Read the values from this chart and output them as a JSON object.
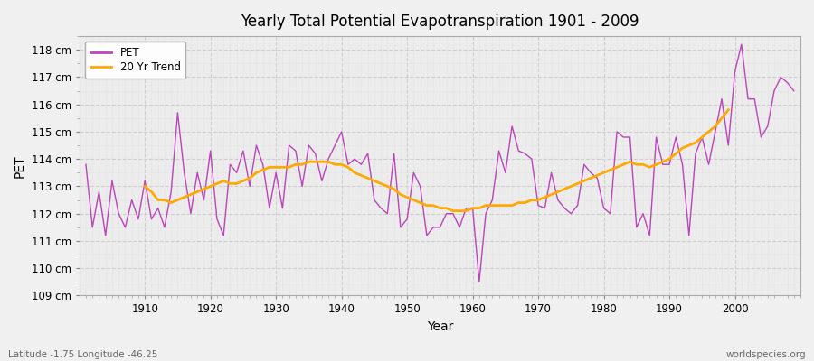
{
  "title": "Yearly Total Potential Evapotranspiration 1901 - 2009",
  "xlabel": "Year",
  "ylabel": "PET",
  "bottom_left_label": "Latitude -1.75 Longitude -46.25",
  "bottom_right_label": "worldspecies.org",
  "pet_color": "#bb44bb",
  "trend_color": "#ffaa00",
  "bg_color": "#f0f0f0",
  "plot_bg_color": "#ececec",
  "ylim": [
    109,
    118.5
  ],
  "yticks": [
    109,
    110,
    111,
    112,
    113,
    114,
    115,
    116,
    117,
    118
  ],
  "years": [
    1901,
    1902,
    1903,
    1904,
    1905,
    1906,
    1907,
    1908,
    1909,
    1910,
    1911,
    1912,
    1913,
    1914,
    1915,
    1916,
    1917,
    1918,
    1919,
    1920,
    1921,
    1922,
    1923,
    1924,
    1925,
    1926,
    1927,
    1928,
    1929,
    1930,
    1931,
    1932,
    1933,
    1934,
    1935,
    1936,
    1937,
    1938,
    1939,
    1940,
    1941,
    1942,
    1943,
    1944,
    1945,
    1946,
    1947,
    1948,
    1949,
    1950,
    1951,
    1952,
    1953,
    1954,
    1955,
    1956,
    1957,
    1958,
    1959,
    1960,
    1961,
    1962,
    1963,
    1964,
    1965,
    1966,
    1967,
    1968,
    1969,
    1970,
    1971,
    1972,
    1973,
    1974,
    1975,
    1976,
    1977,
    1978,
    1979,
    1980,
    1981,
    1982,
    1983,
    1984,
    1985,
    1986,
    1987,
    1988,
    1989,
    1990,
    1991,
    1992,
    1993,
    1994,
    1995,
    1996,
    1997,
    1998,
    1999,
    2000,
    2001,
    2002,
    2003,
    2004,
    2005,
    2006,
    2007,
    2008,
    2009
  ],
  "pet_values": [
    113.8,
    111.5,
    112.8,
    111.2,
    113.2,
    112.0,
    111.5,
    112.5,
    111.8,
    113.2,
    111.8,
    112.2,
    111.5,
    112.8,
    115.7,
    113.5,
    112.0,
    113.5,
    112.5,
    114.3,
    111.8,
    111.2,
    113.8,
    113.5,
    114.3,
    113.0,
    114.5,
    113.8,
    112.2,
    113.5,
    112.2,
    114.5,
    114.3,
    113.0,
    114.5,
    114.2,
    113.2,
    114.0,
    114.5,
    115.0,
    113.8,
    114.0,
    113.8,
    114.2,
    112.5,
    112.2,
    112.0,
    114.2,
    111.5,
    111.8,
    113.5,
    113.0,
    111.2,
    111.5,
    111.5,
    112.0,
    112.0,
    111.5,
    112.2,
    112.2,
    109.5,
    112.0,
    112.5,
    114.3,
    113.5,
    115.2,
    114.3,
    114.2,
    114.0,
    112.3,
    112.2,
    113.5,
    112.5,
    112.2,
    112.0,
    112.3,
    113.8,
    113.5,
    113.3,
    112.2,
    112.0,
    115.0,
    114.8,
    114.8,
    111.5,
    112.0,
    111.2,
    114.8,
    113.8,
    113.8,
    114.8,
    113.8,
    111.2,
    114.2,
    114.8,
    113.8,
    115.0,
    116.2,
    114.5,
    117.2,
    118.2,
    116.2,
    116.2,
    114.8,
    115.2,
    116.5,
    117.0,
    116.8,
    116.5
  ],
  "trend_values": [
    null,
    null,
    null,
    null,
    null,
    null,
    null,
    null,
    null,
    113.0,
    112.8,
    112.5,
    112.5,
    112.4,
    112.5,
    112.6,
    112.7,
    112.8,
    112.9,
    113.0,
    113.1,
    113.2,
    113.1,
    113.1,
    113.2,
    113.3,
    113.5,
    113.6,
    113.7,
    113.7,
    113.7,
    113.7,
    113.8,
    113.8,
    113.9,
    113.9,
    113.9,
    113.9,
    113.8,
    113.8,
    113.7,
    113.5,
    113.4,
    113.3,
    113.2,
    113.1,
    113.0,
    112.9,
    112.7,
    112.6,
    112.5,
    112.4,
    112.3,
    112.3,
    112.2,
    112.2,
    112.1,
    112.1,
    112.1,
    112.2,
    112.2,
    112.3,
    112.3,
    112.3,
    112.3,
    112.3,
    112.4,
    112.4,
    112.5,
    112.5,
    112.6,
    112.7,
    112.8,
    112.9,
    113.0,
    113.1,
    113.2,
    113.3,
    113.4,
    113.5,
    113.6,
    113.7,
    113.8,
    113.9,
    113.8,
    113.8,
    113.7,
    113.8,
    113.9,
    114.0,
    114.2,
    114.4,
    114.5,
    114.6,
    114.8,
    115.0,
    115.2,
    115.5,
    115.8
  ],
  "legend_pet_label": "PET",
  "legend_trend_label": "20 Yr Trend"
}
